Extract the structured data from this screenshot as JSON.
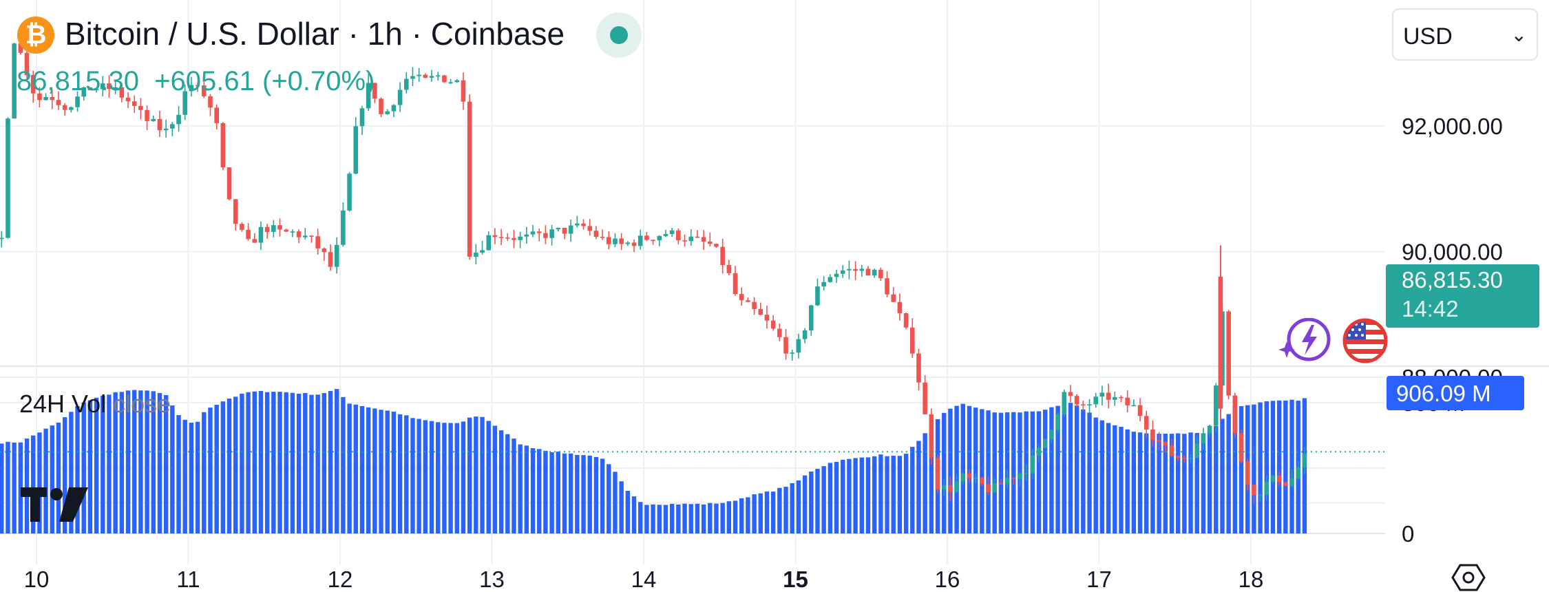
{
  "header": {
    "title": "Bitcoin / U.S. Dollar · 1h · Coinbase",
    "price": "86,815.30",
    "change": "+605.61 (+0.70%)",
    "logo_glyph": "₿",
    "status": "market-open",
    "status_color": "#26a69a"
  },
  "currency_selector": {
    "value": "USD",
    "icon": "chevron-down-icon"
  },
  "price_tag": {
    "price": "86,815.30",
    "countdown": "14:42"
  },
  "volume_tag": {
    "value": "906.09 M"
  },
  "volume_label": {
    "name": "24H Vol",
    "source": "close"
  },
  "colors": {
    "up": "#26a69a",
    "down": "#ef5350",
    "volume": "#2962ff",
    "price_tag": "#26a69a"
  },
  "icons": {
    "logo": "tradingview-logo",
    "settings": "settings-hex-icon",
    "bolt": "lightning-icon",
    "flag": "us-flag-icon"
  },
  "chart_data": {
    "type": "candlestick",
    "symbol": "BTCUSD",
    "interval": "1h",
    "x_ticks": [
      {
        "day": 10,
        "label": "10",
        "bold": false
      },
      {
        "day": 11,
        "label": "11",
        "bold": false
      },
      {
        "day": 12,
        "label": "12",
        "bold": false
      },
      {
        "day": 13,
        "label": "13",
        "bold": false
      },
      {
        "day": 14,
        "label": "14",
        "bold": false
      },
      {
        "day": 15,
        "label": "15",
        "bold": true
      },
      {
        "day": 16,
        "label": "16",
        "bold": false
      },
      {
        "day": 17,
        "label": "17",
        "bold": false
      },
      {
        "day": 18,
        "label": "18",
        "bold": false
      }
    ],
    "y_ticks": [
      {
        "value": 92000,
        "label": "92,000.00"
      },
      {
        "value": 90000,
        "label": "90,000.00"
      },
      {
        "value": 88000,
        "label": "88,000.00"
      }
    ],
    "y_range": [
      84200,
      94000
    ],
    "x_range": [
      9.76,
      18.92
    ],
    "last_price": 86815.3,
    "volume_ticks": [
      {
        "value": 0,
        "label": "0"
      },
      {
        "value": 800,
        "label": "800 M"
      }
    ],
    "volume_range": [
      0,
      1030
    ],
    "volume_unit": "M",
    "price_path": [
      [
        9.77,
        90200
      ],
      [
        9.82,
        92600
      ],
      [
        9.85,
        93400
      ],
      [
        9.92,
        93000
      ],
      [
        10.0,
        92400
      ],
      [
        10.08,
        92500
      ],
      [
        10.2,
        92300
      ],
      [
        10.35,
        92600
      ],
      [
        10.5,
        92600
      ],
      [
        10.6,
        92400
      ],
      [
        10.72,
        92100
      ],
      [
        10.85,
        91900
      ],
      [
        10.95,
        92300
      ],
      [
        11.0,
        92700
      ],
      [
        11.1,
        92500
      ],
      [
        11.18,
        92100
      ],
      [
        11.25,
        90900
      ],
      [
        11.32,
        90400
      ],
      [
        11.4,
        90100
      ],
      [
        11.5,
        90400
      ],
      [
        11.6,
        90300
      ],
      [
        11.7,
        90300
      ],
      [
        11.8,
        90200
      ],
      [
        11.88,
        90000
      ],
      [
        11.95,
        89700
      ],
      [
        12.0,
        90300
      ],
      [
        12.05,
        91000
      ],
      [
        12.12,
        92200
      ],
      [
        12.2,
        92700
      ],
      [
        12.28,
        92100
      ],
      [
        12.35,
        92400
      ],
      [
        12.45,
        92800
      ],
      [
        12.55,
        92700
      ],
      [
        12.65,
        92800
      ],
      [
        12.75,
        92700
      ],
      [
        12.81,
        92700
      ],
      [
        12.83,
        90000
      ],
      [
        12.9,
        90000
      ],
      [
        13.0,
        90300
      ],
      [
        13.2,
        90200
      ],
      [
        13.4,
        90300
      ],
      [
        13.6,
        90400
      ],
      [
        13.72,
        90200
      ],
      [
        13.85,
        90100
      ],
      [
        14.0,
        90200
      ],
      [
        14.15,
        90300
      ],
      [
        14.3,
        90200
      ],
      [
        14.45,
        90100
      ],
      [
        14.55,
        89700
      ],
      [
        14.62,
        89200
      ],
      [
        14.7,
        89100
      ],
      [
        14.8,
        88900
      ],
      [
        14.9,
        88600
      ],
      [
        14.98,
        88300
      ],
      [
        15.05,
        88700
      ],
      [
        15.12,
        89300
      ],
      [
        15.2,
        89600
      ],
      [
        15.3,
        89700
      ],
      [
        15.42,
        89700
      ],
      [
        15.5,
        89700
      ],
      [
        15.58,
        89500
      ],
      [
        15.68,
        89000
      ],
      [
        15.78,
        88400
      ],
      [
        15.88,
        87000
      ],
      [
        15.93,
        86300
      ],
      [
        16.0,
        86200
      ],
      [
        16.1,
        86400
      ],
      [
        16.2,
        86300
      ],
      [
        16.3,
        86200
      ],
      [
        16.4,
        86400
      ],
      [
        16.5,
        86500
      ],
      [
        16.6,
        86800
      ],
      [
        16.7,
        87300
      ],
      [
        16.78,
        87800
      ],
      [
        16.85,
        87500
      ],
      [
        16.95,
        87600
      ],
      [
        17.05,
        87700
      ],
      [
        17.15,
        87600
      ],
      [
        17.25,
        87500
      ],
      [
        17.35,
        87100
      ],
      [
        17.45,
        86800
      ],
      [
        17.55,
        86700
      ],
      [
        17.65,
        86900
      ],
      [
        17.7,
        87200
      ],
      [
        17.76,
        87400
      ],
      [
        17.8,
        89600
      ],
      [
        17.84,
        87900
      ],
      [
        17.9,
        87000
      ],
      [
        17.96,
        86500
      ],
      [
        18.02,
        86100
      ],
      [
        18.1,
        86300
      ],
      [
        18.18,
        86400
      ],
      [
        18.25,
        86300
      ],
      [
        18.32,
        86600
      ],
      [
        18.38,
        86800
      ]
    ],
    "volume_path": [
      [
        9.77,
        555
      ],
      [
        9.9,
        560
      ],
      [
        10.0,
        610
      ],
      [
        10.15,
        680
      ],
      [
        10.3,
        800
      ],
      [
        10.5,
        860
      ],
      [
        10.7,
        880
      ],
      [
        10.85,
        850
      ],
      [
        10.95,
        700
      ],
      [
        11.05,
        670
      ],
      [
        11.12,
        760
      ],
      [
        11.25,
        820
      ],
      [
        11.4,
        865
      ],
      [
        11.55,
        870
      ],
      [
        11.7,
        860
      ],
      [
        11.85,
        850
      ],
      [
        11.98,
        880
      ],
      [
        12.05,
        800
      ],
      [
        12.2,
        770
      ],
      [
        12.35,
        745
      ],
      [
        12.5,
        700
      ],
      [
        12.65,
        680
      ],
      [
        12.78,
        670
      ],
      [
        12.88,
        720
      ],
      [
        12.95,
        710
      ],
      [
        13.05,
        640
      ],
      [
        13.2,
        540
      ],
      [
        13.4,
        500
      ],
      [
        13.6,
        480
      ],
      [
        13.7,
        470
      ],
      [
        13.75,
        440
      ],
      [
        13.8,
        390
      ],
      [
        13.9,
        250
      ],
      [
        14.0,
        180
      ],
      [
        14.2,
        180
      ],
      [
        14.4,
        180
      ],
      [
        14.55,
        190
      ],
      [
        14.7,
        230
      ],
      [
        14.85,
        260
      ],
      [
        15.0,
        310
      ],
      [
        15.1,
        380
      ],
      [
        15.25,
        440
      ],
      [
        15.4,
        460
      ],
      [
        15.55,
        480
      ],
      [
        15.7,
        470
      ],
      [
        15.8,
        550
      ],
      [
        15.9,
        660
      ],
      [
        16.0,
        760
      ],
      [
        16.1,
        790
      ],
      [
        16.2,
        770
      ],
      [
        16.3,
        740
      ],
      [
        16.45,
        740
      ],
      [
        16.6,
        750
      ],
      [
        16.75,
        780
      ],
      [
        16.8,
        800
      ],
      [
        16.9,
        760
      ],
      [
        17.0,
        700
      ],
      [
        17.1,
        660
      ],
      [
        17.25,
        620
      ],
      [
        17.4,
        610
      ],
      [
        17.55,
        610
      ],
      [
        17.65,
        620
      ],
      [
        17.72,
        610
      ],
      [
        17.8,
        690
      ],
      [
        17.9,
        770
      ],
      [
        18.0,
        790
      ],
      [
        18.1,
        805
      ],
      [
        18.2,
        810
      ],
      [
        18.3,
        815
      ],
      [
        18.38,
        830
      ]
    ]
  }
}
